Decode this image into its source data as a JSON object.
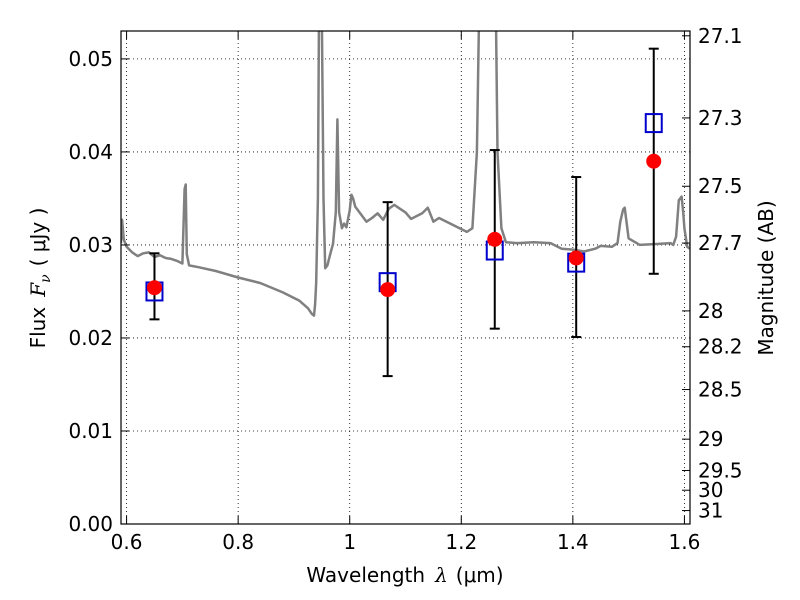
{
  "chart_data": {
    "type": "scatter",
    "xlabel_text": "Wavelength",
    "xlabel_symbol": "λ",
    "xlabel_unit": "(μm)",
    "ylabel_text": "Flux",
    "ylabel_symbol": "F",
    "ylabel_subscript": "ν",
    "ylabel_unit": "( μJy )",
    "y2label": "Magnitude (AB)",
    "xlim": [
      0.59,
      1.61
    ],
    "ylim": [
      0.0,
      0.053
    ],
    "grid": true,
    "x_ticks": [
      0.6,
      0.8,
      1.0,
      1.2,
      1.4,
      1.6
    ],
    "x_tick_labels": [
      "0.6",
      "0.8",
      "1",
      "1.2",
      "1.4",
      "1.6"
    ],
    "y_ticks": [
      0.0,
      0.01,
      0.02,
      0.03,
      0.04,
      0.05
    ],
    "y_tick_labels": [
      "0.00",
      "0.01",
      "0.02",
      "0.03",
      "0.04",
      "0.05"
    ],
    "mag_ticks": [
      27.1,
      27.3,
      27.5,
      27.7,
      28,
      28.2,
      28.5,
      29,
      29.5,
      30,
      31
    ],
    "mag_tick_labels": [
      "27.1",
      "27.3",
      "27.5",
      "27.7",
      "28",
      "28.2",
      "28.5",
      "29",
      "29.5",
      "30",
      "31"
    ],
    "model_flux": {
      "name": "model spectrum",
      "color": "#808080",
      "x": [
        0.59,
        0.592,
        0.595,
        0.6,
        0.61,
        0.62,
        0.63,
        0.64,
        0.65,
        0.66,
        0.67,
        0.68,
        0.69,
        0.7,
        0.704,
        0.706,
        0.708,
        0.712,
        0.73,
        0.76,
        0.8,
        0.84,
        0.88,
        0.91,
        0.925,
        0.932,
        0.936,
        0.938,
        0.94,
        0.943,
        0.945,
        0.95,
        0.953,
        0.956,
        0.96,
        0.965,
        0.97,
        0.975,
        0.978,
        0.981,
        0.986,
        0.99,
        0.994,
        1.0,
        1.003,
        1.006,
        1.01,
        1.02,
        1.03,
        1.04,
        1.05,
        1.06,
        1.07,
        1.08,
        1.09,
        1.1,
        1.11,
        1.13,
        1.14,
        1.15,
        1.16,
        1.18,
        1.2,
        1.21,
        1.22,
        1.228,
        1.232,
        1.234,
        1.236,
        1.25,
        1.262,
        1.265,
        1.272,
        1.28,
        1.3,
        1.33,
        1.36,
        1.38,
        1.4,
        1.42,
        1.44,
        1.45,
        1.47,
        1.48,
        1.485,
        1.49,
        1.493,
        1.5,
        1.52,
        1.55,
        1.575,
        1.58,
        1.585,
        1.59,
        1.595,
        1.598,
        1.6,
        1.605,
        1.61
      ],
      "y": [
        0.0302,
        0.0327,
        0.0306,
        0.0298,
        0.0292,
        0.0288,
        0.0291,
        0.0292,
        0.0287,
        0.0289,
        0.0286,
        0.0285,
        0.0283,
        0.028,
        0.036,
        0.0365,
        0.029,
        0.0278,
        0.0276,
        0.0272,
        0.0265,
        0.0259,
        0.0249,
        0.024,
        0.0232,
        0.0226,
        0.0224,
        0.0236,
        0.026,
        0.035,
        0.055,
        0.055,
        0.035,
        0.0275,
        0.0278,
        0.029,
        0.0301,
        0.0335,
        0.0435,
        0.0335,
        0.0318,
        0.0323,
        0.0319,
        0.0337,
        0.0354,
        0.035,
        0.0341,
        0.0333,
        0.0325,
        0.0329,
        0.0334,
        0.0327,
        0.0339,
        0.0343,
        0.0339,
        0.0335,
        0.0328,
        0.0334,
        0.034,
        0.0325,
        0.0329,
        0.0323,
        0.0317,
        0.0314,
        0.0318,
        0.04,
        0.055,
        0.055,
        0.055,
        0.055,
        0.055,
        0.04,
        0.0318,
        0.0303,
        0.0302,
        0.0303,
        0.0302,
        0.0296,
        0.0295,
        0.0293,
        0.0296,
        0.0299,
        0.0298,
        0.0302,
        0.0325,
        0.0338,
        0.034,
        0.0307,
        0.03,
        0.0301,
        0.0302,
        0.03,
        0.0309,
        0.0348,
        0.0352,
        0.0334,
        0.0318,
        0.0298,
        0.0296
      ]
    },
    "observed": {
      "name": "observed photometry",
      "color": "#ff0000",
      "x": [
        0.65,
        1.068,
        1.26,
        1.406,
        1.545
      ],
      "y": [
        0.0254,
        0.0252,
        0.0306,
        0.0286,
        0.039
      ],
      "yerr_low": [
        0.022,
        0.0159,
        0.021,
        0.0201,
        0.0269
      ],
      "yerr_high": [
        0.0291,
        0.0346,
        0.0402,
        0.0373,
        0.0511
      ]
    },
    "model_photometry": {
      "name": "model photometry",
      "color": "#0000cc",
      "x": [
        0.65,
        1.068,
        1.26,
        1.406,
        1.545
      ],
      "y": [
        0.025,
        0.026,
        0.0294,
        0.0281,
        0.0431
      ]
    }
  }
}
